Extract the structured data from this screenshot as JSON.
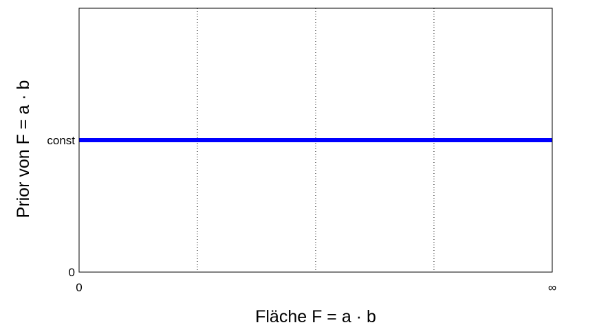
{
  "chart_data": {
    "type": "line",
    "title": "",
    "xlabel": "Fläche F = a · b",
    "ylabel": "Prior von F = a · b",
    "x": [
      0,
      4
    ],
    "xlim": [
      0,
      4
    ],
    "ylim": [
      0,
      1
    ],
    "x_tick_positions": [
      0,
      4
    ],
    "x_tick_labels": [
      "0",
      "∞"
    ],
    "y_tick_positions": [
      0,
      0.5
    ],
    "y_tick_labels": [
      "0",
      "const"
    ],
    "x_grid_positions": [
      1,
      2,
      3
    ],
    "grid": "x-dotted",
    "series": [
      {
        "values": [
          0.5,
          0.5
        ],
        "color": "#0000ff"
      }
    ]
  }
}
